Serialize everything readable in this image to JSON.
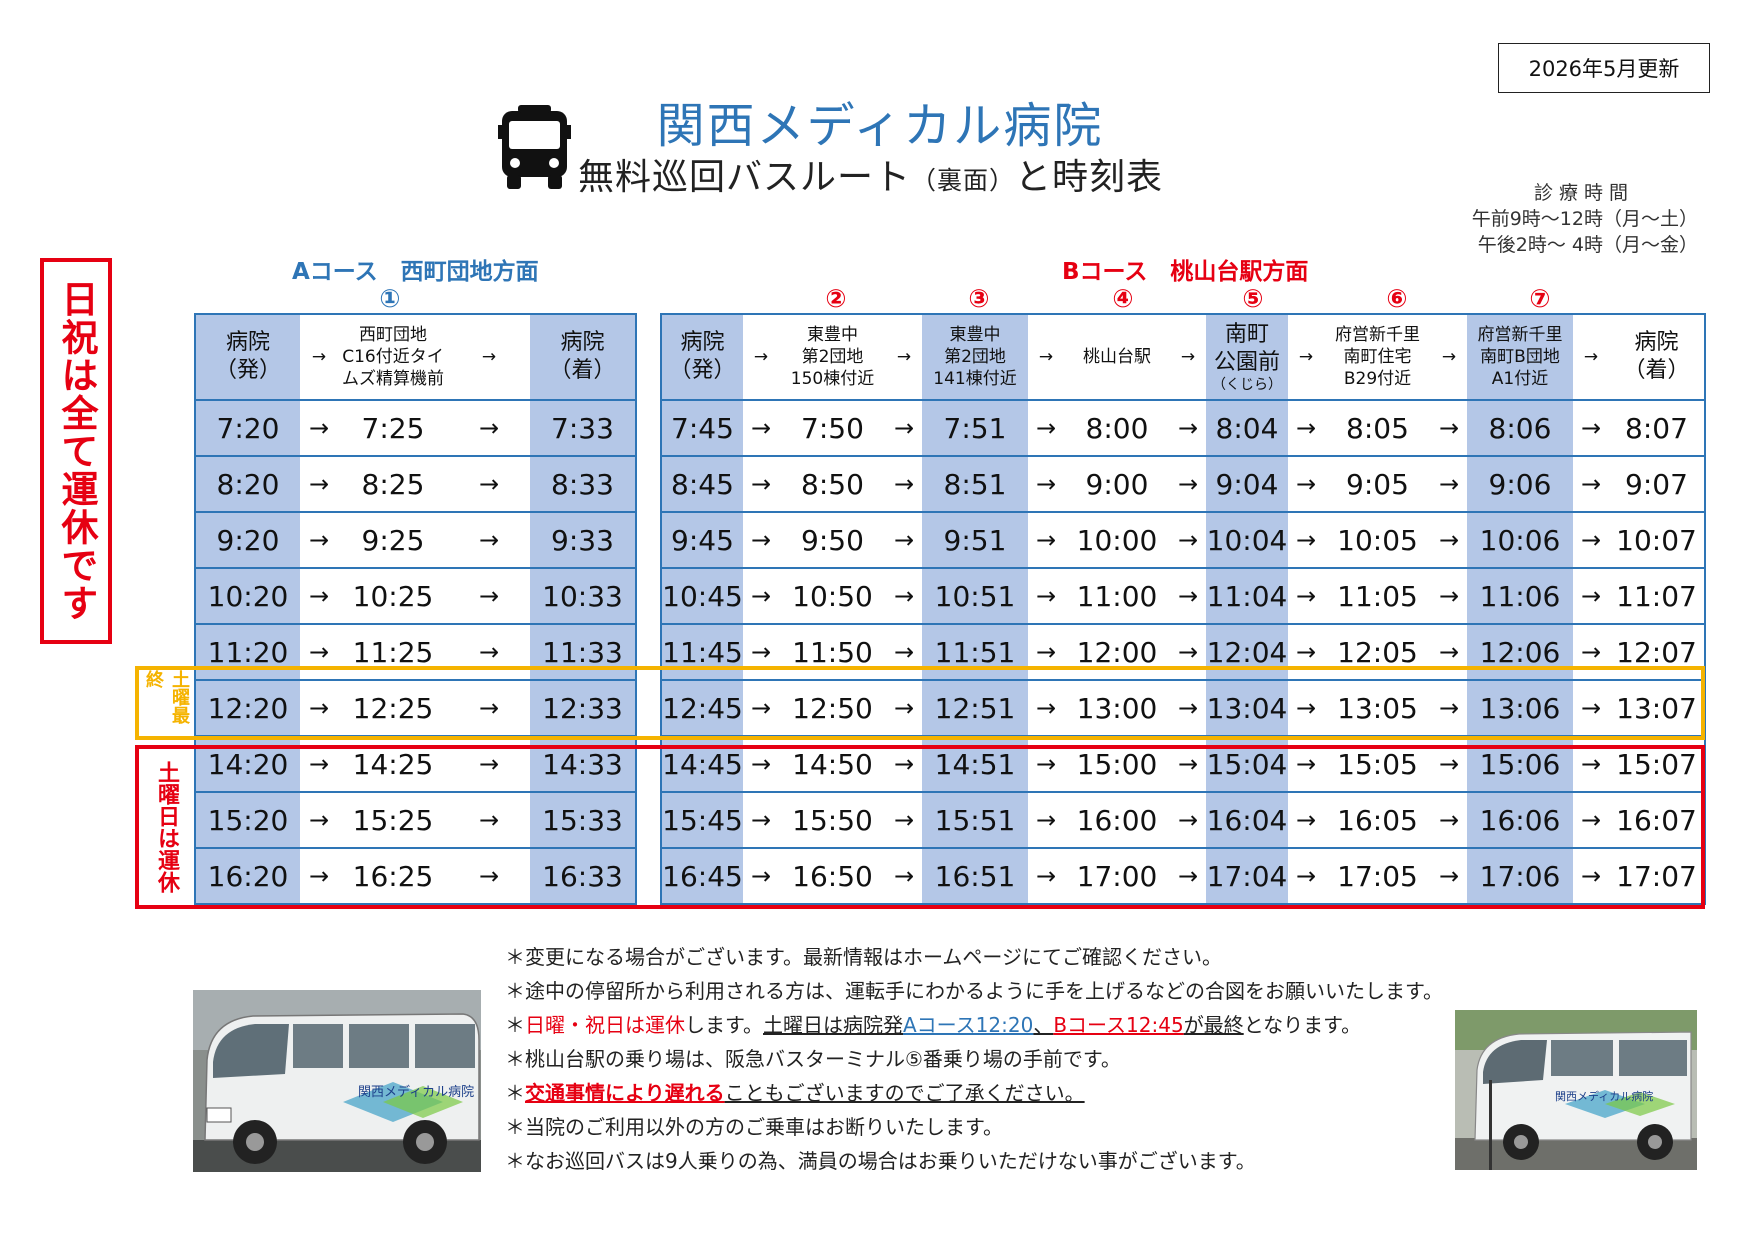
{
  "update_label": "2026年5月更新",
  "title": "関西メディカル病院",
  "subtitle": "無料巡回バスルート",
  "subtitle_small": "（裏面）",
  "subtitle_tail": "と時刻表",
  "hours": {
    "title": "診療時間",
    "am": "午前9時～12時（月～土）",
    "pm": "午後2時～ 4時（月～金）"
  },
  "holiday_notice": "日祝は全て運休です",
  "courseA": {
    "title": "Aコース　西町団地方面",
    "stop_number": "①",
    "headers": {
      "depart": "病院\n（発）",
      "stop1": "西町団地\nC16付近タイ\nムズ精算機前",
      "arrive": "病院\n（着）"
    },
    "rows": [
      [
        "7:20",
        "7:25",
        "7:33"
      ],
      [
        "8:20",
        "8:25",
        "8:33"
      ],
      [
        "9:20",
        "9:25",
        "9:33"
      ],
      [
        "10:20",
        "10:25",
        "10:33"
      ],
      [
        "11:20",
        "11:25",
        "11:33"
      ],
      [
        "12:20",
        "12:25",
        "12:33"
      ],
      [
        "14:20",
        "14:25",
        "14:33"
      ],
      [
        "15:20",
        "15:25",
        "15:33"
      ],
      [
        "16:20",
        "16:25",
        "16:33"
      ]
    ]
  },
  "courseB": {
    "title": "Bコース　桃山台駅方面",
    "stop_numbers": [
      "②",
      "③",
      "④",
      "⑤",
      "⑥",
      "⑦"
    ],
    "headers": {
      "depart": "病院\n（発）",
      "s2": "東豊中\n第2団地\n150棟付近",
      "s3": "東豊中\n第2団地\n141棟付近",
      "s4": "桃山台駅",
      "s5": "南町\n公園前",
      "s5_kana": "（くじら）",
      "s6": "府営新千里\n南町住宅\nB29付近",
      "s7": "府営新千里\n南町B団地\nA1付近",
      "arrive": "病院\n（着）"
    },
    "rows": [
      [
        "7:45",
        "7:50",
        "7:51",
        "8:00",
        "8:04",
        "8:05",
        "8:06",
        "8:07"
      ],
      [
        "8:45",
        "8:50",
        "8:51",
        "9:00",
        "9:04",
        "9:05",
        "9:06",
        "9:07"
      ],
      [
        "9:45",
        "9:50",
        "9:51",
        "10:00",
        "10:04",
        "10:05",
        "10:06",
        "10:07"
      ],
      [
        "10:45",
        "10:50",
        "10:51",
        "11:00",
        "11:04",
        "11:05",
        "11:06",
        "11:07"
      ],
      [
        "11:45",
        "11:50",
        "11:51",
        "12:00",
        "12:04",
        "12:05",
        "12:06",
        "12:07"
      ],
      [
        "12:45",
        "12:50",
        "12:51",
        "13:00",
        "13:04",
        "13:05",
        "13:06",
        "13:07"
      ],
      [
        "14:45",
        "14:50",
        "14:51",
        "15:00",
        "15:04",
        "15:05",
        "15:06",
        "15:07"
      ],
      [
        "15:45",
        "15:50",
        "15:51",
        "16:00",
        "16:04",
        "16:05",
        "16:06",
        "16:07"
      ],
      [
        "16:45",
        "16:50",
        "16:51",
        "17:00",
        "17:04",
        "17:05",
        "17:06",
        "17:07"
      ]
    ]
  },
  "arrow": "→",
  "saturday_final_label": "土曜最終",
  "saturday_off_label": "土曜日は運休",
  "notes": {
    "n1": "＊変更になる場合がございます。最新情報はホームページにてご確認ください。",
    "n2": "＊途中の停留所から利用される方は、運転手にわかるように手を上げるなどの合図をお願いいたします。",
    "n3_a": "＊",
    "n3_b": "日曜・祝日は運休",
    "n3_c": "します。",
    "n3_d": "土曜日は病院発",
    "n3_e": "Aコース12:20",
    "n3_f": "、",
    "n3_g": "Bコース12:45",
    "n3_h": "が最終",
    "n3_i": "となります。",
    "n4": "＊桃山台駅の乗り場は、阪急バスターミナル⑤番乗り場の手前です。",
    "n5_a": "＊",
    "n5_b": "交通事情により遅れる",
    "n5_c": "こともございますのでご了承ください。",
    "n6": "＊当院のご利用以外の方のご乗車はお断りいたします。",
    "n7": "＊なお巡回バスは9人乗りの為、満員の場合はお乗りいただけない事がございます。"
  },
  "photo_left_label": "関西メディカル病院",
  "photo_right_label": "関西メディカル病院",
  "colors": {
    "blue": "#2e75b6",
    "red": "#e60012",
    "yellow": "#f5b300",
    "shade": "#b4c7e7"
  }
}
